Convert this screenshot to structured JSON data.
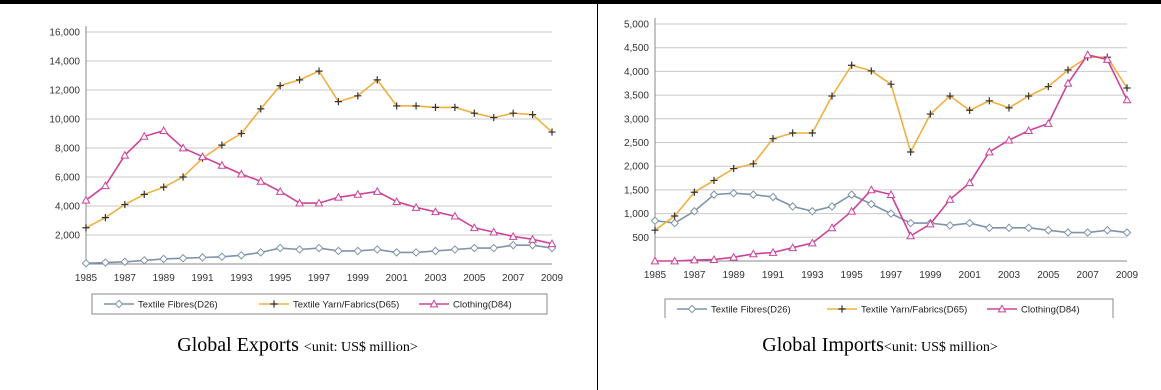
{
  "colors": {
    "fibres": "#7f93ab",
    "yarn": "#f0b040",
    "clothing": "#cc4499",
    "grid": "#c8c8c8",
    "frame": "#8a8a8a"
  },
  "chart_data": [
    {
      "type": "line",
      "title": "Global Exports",
      "unit": "<unit: US$ million>",
      "x": [
        1985,
        1986,
        1987,
        1988,
        1989,
        1990,
        1991,
        1992,
        1993,
        1994,
        1995,
        1996,
        1997,
        1998,
        1999,
        2000,
        2001,
        2002,
        2003,
        2004,
        2005,
        2006,
        2007,
        2008,
        2009
      ],
      "x_tick_labels": [
        "1985",
        "1987",
        "1989",
        "1991",
        "1993",
        "1995",
        "1997",
        "1999",
        "2001",
        "2003",
        "2005",
        "2007",
        "2009"
      ],
      "y_tick_labels": [
        "2,000",
        "4,000",
        "6,000",
        "8,000",
        "10,000",
        "12,000",
        "14,000",
        "16,000"
      ],
      "ylim": [
        0,
        16000
      ],
      "grid": true,
      "legend_position": "bottom",
      "series": [
        {
          "name": "Textile Fibres(D26)",
          "marker": "diamond",
          "values": [
            50,
            100,
            150,
            250,
            350,
            400,
            450,
            500,
            600,
            800,
            1100,
            1000,
            1100,
            900,
            900,
            1000,
            800,
            800,
            900,
            1000,
            1100,
            1100,
            1300,
            1300,
            1100
          ]
        },
        {
          "name": "Textile Yarn/Fabrics(D65)",
          "marker": "plus",
          "values": [
            2500,
            3200,
            4100,
            4800,
            5300,
            6000,
            7300,
            8200,
            9000,
            10700,
            12300,
            12700,
            13300,
            11200,
            11600,
            12700,
            10900,
            10900,
            10800,
            10800,
            10400,
            10100,
            10400,
            10300,
            9100
          ]
        },
        {
          "name": "Clothing(D84)",
          "marker": "triangle",
          "values": [
            4400,
            5400,
            7500,
            8800,
            9200,
            8000,
            7400,
            6800,
            6200,
            5700,
            5000,
            4200,
            4200,
            4600,
            4800,
            5000,
            4300,
            3900,
            3600,
            3300,
            2500,
            2200,
            1900,
            1700,
            1400
          ]
        }
      ]
    },
    {
      "type": "line",
      "title": "Global Imports",
      "unit": "<unit: US$ million>",
      "x": [
        1985,
        1986,
        1987,
        1988,
        1989,
        1990,
        1991,
        1992,
        1993,
        1994,
        1995,
        1996,
        1997,
        1998,
        1999,
        2000,
        2001,
        2002,
        2003,
        2004,
        2005,
        2006,
        2007,
        2008,
        2009
      ],
      "x_tick_labels": [
        "1985",
        "1987",
        "1989",
        "1991",
        "1993",
        "1995",
        "1997",
        "1999",
        "2001",
        "2003",
        "2005",
        "2007",
        "2009"
      ],
      "y_tick_labels": [
        "500",
        "1,000",
        "1,500",
        "2,000",
        "2,500",
        "3,000",
        "3,500",
        "4,000",
        "4,500",
        "5,000"
      ],
      "ylim": [
        0,
        5000
      ],
      "grid": true,
      "legend_position": "bottom",
      "series": [
        {
          "name": "Textile Fibres(D26)",
          "marker": "diamond",
          "values": [
            850,
            800,
            1050,
            1400,
            1430,
            1400,
            1350,
            1150,
            1050,
            1150,
            1400,
            1200,
            1000,
            800,
            800,
            750,
            800,
            700,
            700,
            700,
            650,
            600,
            600,
            650,
            600
          ]
        },
        {
          "name": "Textile Yarn/Fabrics(D65)",
          "marker": "plus",
          "values": [
            650,
            950,
            1450,
            1700,
            1950,
            2050,
            2580,
            2700,
            2700,
            3480,
            4130,
            4010,
            3730,
            2300,
            3100,
            3480,
            3180,
            3380,
            3230,
            3480,
            3680,
            4030,
            4300,
            4300,
            3650
          ]
        },
        {
          "name": "Clothing(D84)",
          "marker": "triangle",
          "values": [
            0,
            0,
            20,
            30,
            80,
            150,
            180,
            280,
            380,
            700,
            1050,
            1500,
            1400,
            530,
            780,
            1300,
            1650,
            2300,
            2550,
            2750,
            2900,
            3750,
            4350,
            4250,
            3400
          ]
        }
      ]
    }
  ]
}
